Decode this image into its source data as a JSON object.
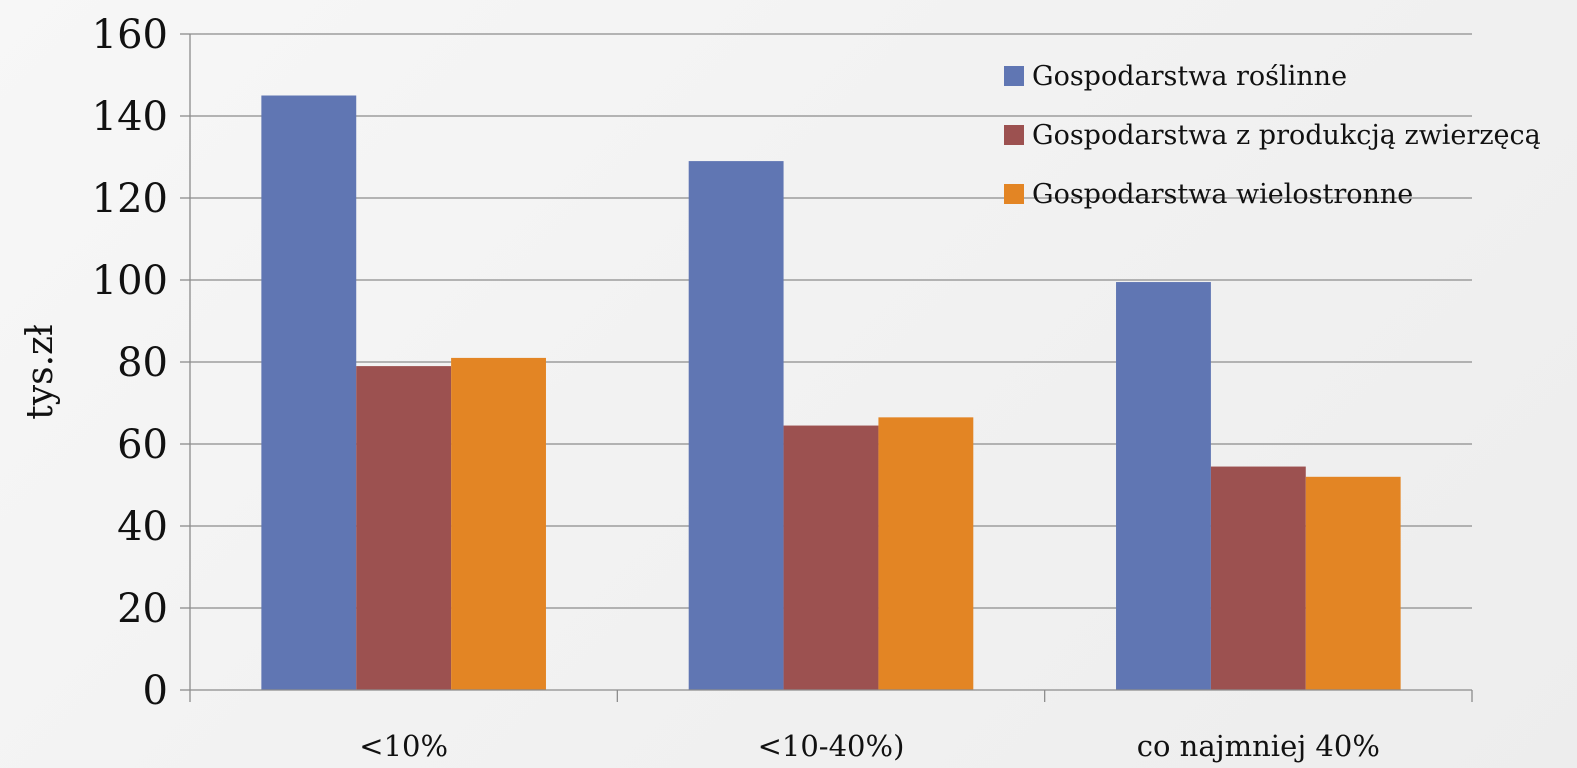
{
  "chart_data": {
    "type": "bar",
    "title": "",
    "xlabel": "",
    "ylabel": "tys.zł",
    "ylim": [
      0,
      160
    ],
    "yticks": [
      0,
      20,
      40,
      60,
      80,
      100,
      120,
      140,
      160
    ],
    "grid": true,
    "legend_position": "top-right",
    "categories": [
      "<10%",
      "<10-40%)",
      "co najmniej 40%"
    ],
    "series": [
      {
        "name": "Gospodarstwa roślinne",
        "color": "#6076b3",
        "values": [
          145,
          129,
          99.5
        ]
      },
      {
        "name": "Gospodarstwa z produkcją zwierzęcą",
        "color": "#9c5150",
        "values": [
          79,
          64.5,
          54.5
        ]
      },
      {
        "name": "Gospodarstwa wielostronne",
        "color": "#e38524",
        "values": [
          81,
          66.5,
          52
        ]
      }
    ]
  }
}
